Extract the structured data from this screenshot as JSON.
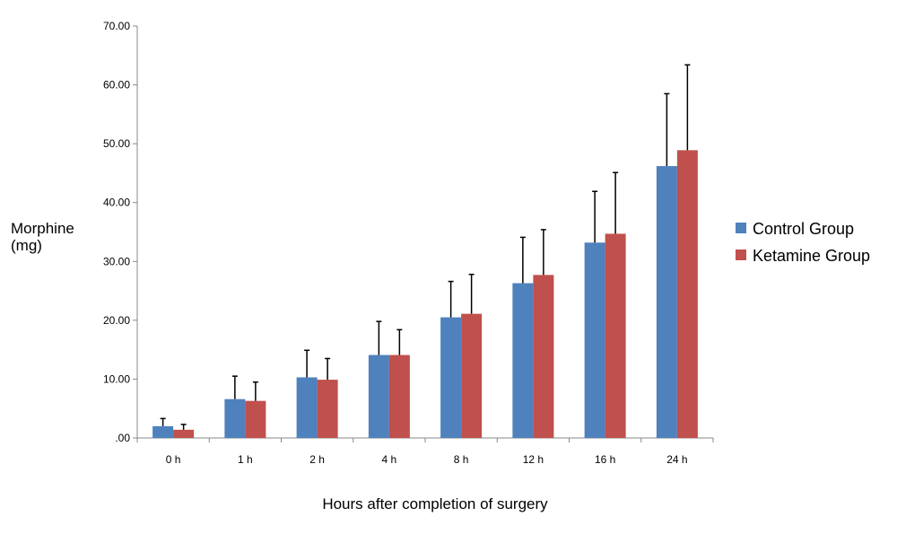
{
  "chart_data": {
    "type": "bar",
    "title": "",
    "xlabel": "Hours after completion of surgery",
    "ylabel_lines": [
      "Morphine",
      "(mg)"
    ],
    "categories": [
      "0 h",
      "1 h",
      "2 h",
      "4 h",
      "8 h",
      "12 h",
      "16 h",
      "24 h"
    ],
    "ylim": [
      0,
      70
    ],
    "yticks": [
      0,
      10,
      20,
      30,
      40,
      50,
      60,
      70
    ],
    "ytick_labels": [
      ".00",
      "10.00",
      "20.00",
      "30.00",
      "40.00",
      "50.00",
      "60.00",
      "70.00"
    ],
    "grid": false,
    "legend_position": "right",
    "series": [
      {
        "name": "Control Group",
        "color": "#4f81bd",
        "values": [
          2.0,
          6.6,
          10.3,
          14.1,
          20.5,
          26.3,
          33.2,
          46.2
        ],
        "error_upper": [
          3.3,
          10.5,
          14.9,
          19.8,
          26.6,
          34.1,
          41.9,
          58.5
        ]
      },
      {
        "name": "Ketamine Group",
        "color": "#c0504d",
        "values": [
          1.4,
          6.3,
          9.9,
          14.1,
          21.1,
          27.7,
          34.7,
          48.9
        ],
        "error_upper": [
          2.3,
          9.5,
          13.5,
          18.4,
          27.8,
          35.4,
          45.1,
          63.4
        ]
      }
    ]
  }
}
